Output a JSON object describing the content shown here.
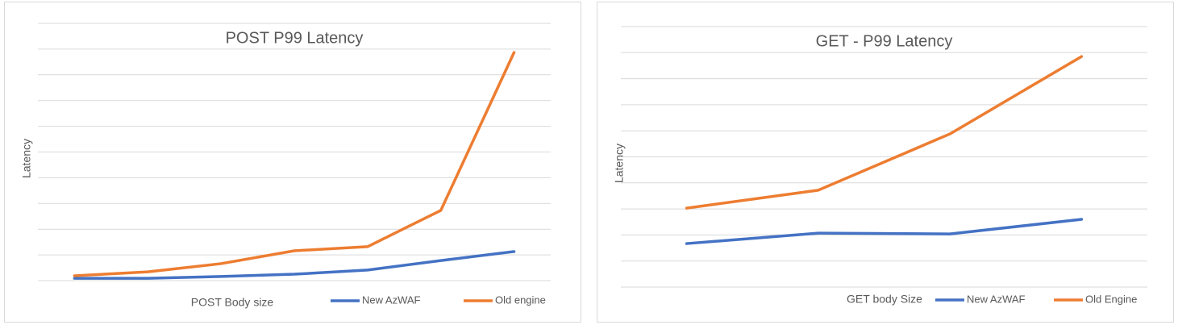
{
  "chart_data": [
    {
      "type": "line",
      "title": "POST P99 Latency",
      "x_label": "POST Body size",
      "y_label": "Latency",
      "categories": [
        null,
        null,
        null,
        null,
        null,
        null,
        null
      ],
      "series": [
        {
          "name": "New AzWAF",
          "color": "#4472c4",
          "values": [
            0.09,
            0.09,
            0.16,
            0.25,
            0.41,
            0.78,
            1.13
          ]
        },
        {
          "name": "Old engine",
          "color": "#ed7d31",
          "values": [
            0.19,
            0.34,
            0.66,
            1.16,
            1.32,
            2.73,
            8.87
          ]
        }
      ],
      "ylim": [
        0,
        10
      ],
      "yticks": [
        0,
        1,
        2,
        3,
        4,
        5,
        6,
        7,
        8,
        9,
        10
      ],
      "grid": true,
      "legend": "bottom-right"
    },
    {
      "type": "line",
      "title": "GET - P99 Latency",
      "x_label": "GET  body Size",
      "y_label": "Latency",
      "categories": [
        null,
        null,
        null,
        null
      ],
      "series": [
        {
          "name": "New AzWAF",
          "color": "#4472c4",
          "values": [
            1.67,
            2.07,
            2.04,
            2.6
          ]
        },
        {
          "name": "Old Engine",
          "color": "#ed7d31",
          "values": [
            3.03,
            3.72,
            5.88,
            8.85
          ]
        }
      ],
      "ylim": [
        0,
        10
      ],
      "yticks": [
        0,
        1,
        2,
        3,
        4,
        5,
        6,
        7,
        8,
        9,
        10
      ],
      "grid": true,
      "legend": "bottom-right"
    }
  ]
}
